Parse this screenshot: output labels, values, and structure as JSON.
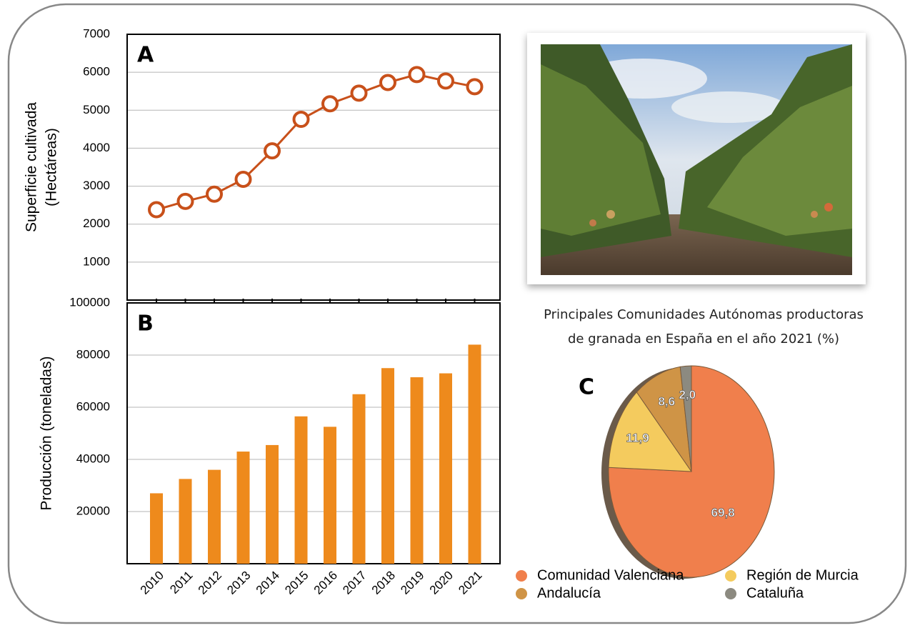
{
  "chart_data": [
    {
      "type": "line",
      "label": "A",
      "y_label": [
        "Superficie cultivada",
        "(Hectáreas)"
      ],
      "values": [
        2380,
        2600,
        2790,
        3180,
        3930,
        4760,
        5170,
        5450,
        5730,
        5940,
        5770,
        5620
      ],
      "color": "#c8501a",
      "ylim": [
        0,
        7000
      ],
      "yticks": [
        1000,
        2000,
        3000,
        4000,
        5000,
        6000,
        7000
      ],
      "grid": true
    },
    {
      "type": "bar",
      "label": "B",
      "y_label": "Producción (toneladas)",
      "categories": [
        "2010",
        "2011",
        "2012",
        "2013",
        "2014",
        "2015",
        "2016",
        "2017",
        "2018",
        "2019",
        "2020",
        "2021"
      ],
      "values": [
        27000,
        32500,
        36000,
        43000,
        45500,
        56500,
        52500,
        65000,
        75000,
        71500,
        73000,
        84000
      ],
      "color": "#ee8a1c",
      "ylim": [
        0,
        100000
      ],
      "yticks": [
        20000,
        40000,
        60000,
        80000,
        100000
      ],
      "grid": true
    },
    {
      "type": "pie",
      "label": "C",
      "title": [
        "Principales Comunidades Autónomas productoras",
        "de granada en España en el año 2021 (%)"
      ],
      "categories": [
        "Comunidad Valenciana",
        "Región de Murcia",
        "Andalucía",
        "Cataluña"
      ],
      "values": [
        69.8,
        11.9,
        8.6,
        2.0
      ],
      "value_labels": [
        "69,8",
        "11,9",
        "8,6",
        "2,0"
      ],
      "colors": [
        "#f07f4c",
        "#f4cb5e",
        "#cf9446",
        "#8c8a80"
      ],
      "legend": "bottom"
    }
  ]
}
